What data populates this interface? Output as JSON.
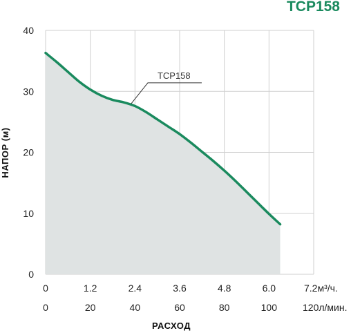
{
  "chart_data": {
    "type": "area",
    "title": "TCP158",
    "ylabel": "НАПОР (м)",
    "xlabel": "РАСХОД",
    "ylim": [
      0,
      40
    ],
    "xlim": [
      0,
      7.2
    ],
    "yticks": [
      "0",
      "10",
      "20",
      "30",
      "40"
    ],
    "xticks_m3h": [
      "0",
      "1.2",
      "2.4",
      "3.6",
      "4.8",
      "6.0",
      "7.2м³/ч."
    ],
    "xticks_lmin": [
      "0",
      "20",
      "40",
      "60",
      "80",
      "100",
      "120л/мин."
    ],
    "grid": true,
    "series": [
      {
        "name": "TCP158",
        "x": [
          0,
          0.3,
          0.6,
          0.9,
          1.2,
          1.5,
          1.8,
          2.1,
          2.4,
          2.7,
          3.0,
          3.3,
          3.6,
          3.9,
          4.2,
          4.5,
          4.8,
          5.1,
          5.4,
          5.7,
          6.0,
          6.3
        ],
        "y": [
          36.3,
          34.8,
          33.2,
          31.6,
          30.3,
          29.3,
          28.6,
          28.2,
          27.6,
          26.6,
          25.4,
          24.2,
          23.0,
          21.6,
          20.1,
          18.6,
          17.0,
          15.3,
          13.5,
          11.7,
          9.9,
          8.2
        ]
      }
    ],
    "colors": {
      "line": "#1a8a5e",
      "fill": "#dfe3e3",
      "title": "#1a8a5e",
      "grid": "#cfcfcf"
    }
  }
}
